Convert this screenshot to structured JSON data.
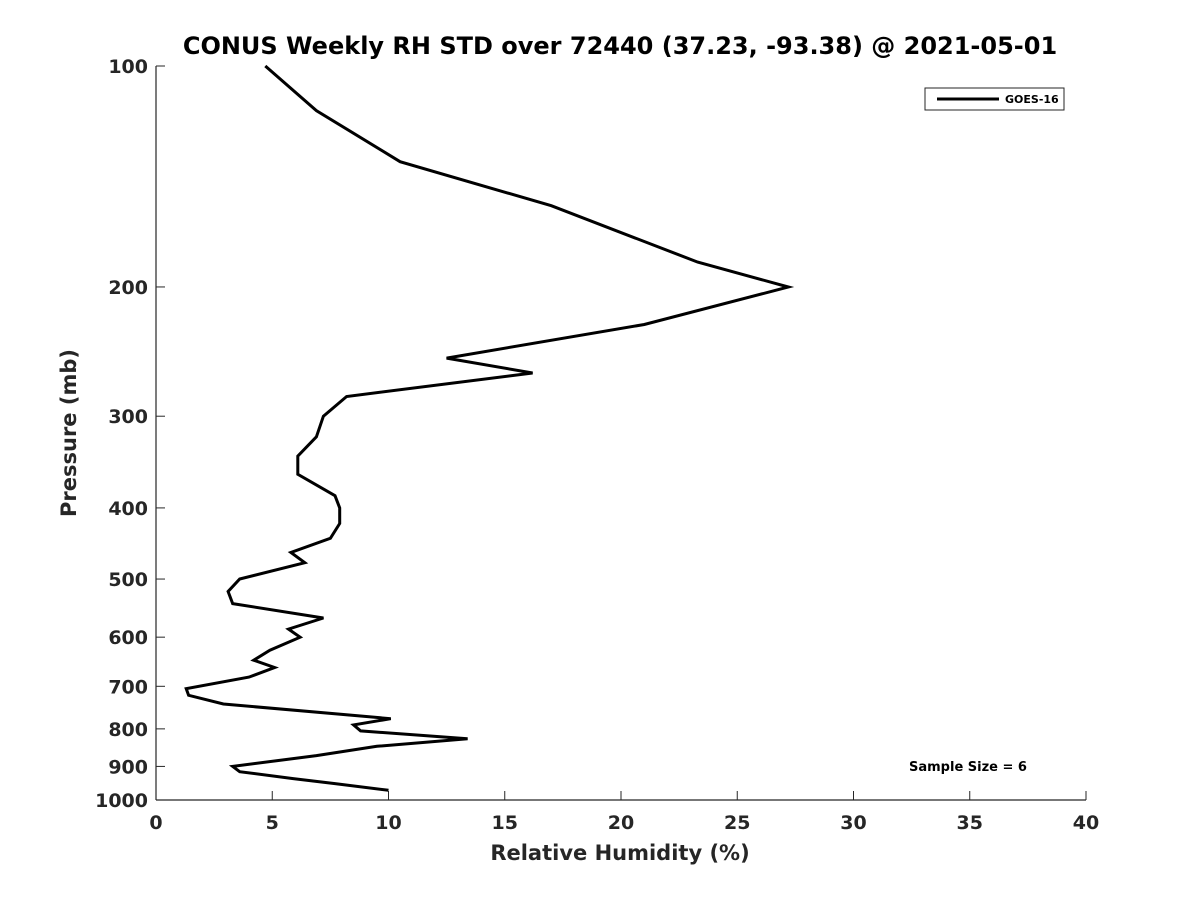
{
  "chart_data": {
    "type": "line",
    "title": "CONUS Weekly RH STD over 72440 (37.23, -93.38) @ 2021-05-01",
    "xlabel": "Relative Humidity (%)",
    "ylabel": "Pressure (mb)",
    "xlim": [
      0,
      40
    ],
    "ylim": [
      100,
      1000
    ],
    "y_scale": "log",
    "y_reversed": true,
    "x_ticks": [
      0,
      5,
      10,
      15,
      20,
      25,
      30,
      35,
      40
    ],
    "y_ticks": [
      100,
      200,
      300,
      400,
      500,
      600,
      700,
      800,
      900,
      1000
    ],
    "grid": false,
    "legend_position": "top-right",
    "series": [
      {
        "name": "GOES-16",
        "color": "#000000",
        "points": [
          [
            4.7,
            100
          ],
          [
            6.9,
            115
          ],
          [
            10.5,
            135
          ],
          [
            17,
            155
          ],
          [
            23.3,
            185
          ],
          [
            27.2,
            200
          ],
          [
            21,
            225
          ],
          [
            12.5,
            250
          ],
          [
            16.2,
            262
          ],
          [
            8.2,
            282
          ],
          [
            7.2,
            300
          ],
          [
            6.9,
            320
          ],
          [
            6.1,
            340
          ],
          [
            6.1,
            360
          ],
          [
            7.7,
            385
          ],
          [
            7.9,
            400
          ],
          [
            7.9,
            420
          ],
          [
            7.5,
            440
          ],
          [
            5.8,
            460
          ],
          [
            6.4,
            475
          ],
          [
            3.6,
            500
          ],
          [
            3.1,
            520
          ],
          [
            3.3,
            540
          ],
          [
            7.2,
            565
          ],
          [
            5.7,
            585
          ],
          [
            6.2,
            600
          ],
          [
            4.9,
            625
          ],
          [
            4.2,
            645
          ],
          [
            5.1,
            660
          ],
          [
            4.0,
            680
          ],
          [
            1.3,
            705
          ],
          [
            1.4,
            720
          ],
          [
            2.9,
            740
          ],
          [
            10.1,
            775
          ],
          [
            8.5,
            790
          ],
          [
            8.8,
            805
          ],
          [
            13.4,
            825
          ],
          [
            9.5,
            845
          ],
          [
            6.9,
            870
          ],
          [
            3.3,
            900
          ],
          [
            3.6,
            915
          ],
          [
            5.9,
            935
          ],
          [
            7.7,
            950
          ],
          [
            10,
            970
          ]
        ]
      }
    ],
    "annotations": [
      {
        "text": "Sample Size = 6",
        "position": "bottom-right"
      }
    ]
  }
}
